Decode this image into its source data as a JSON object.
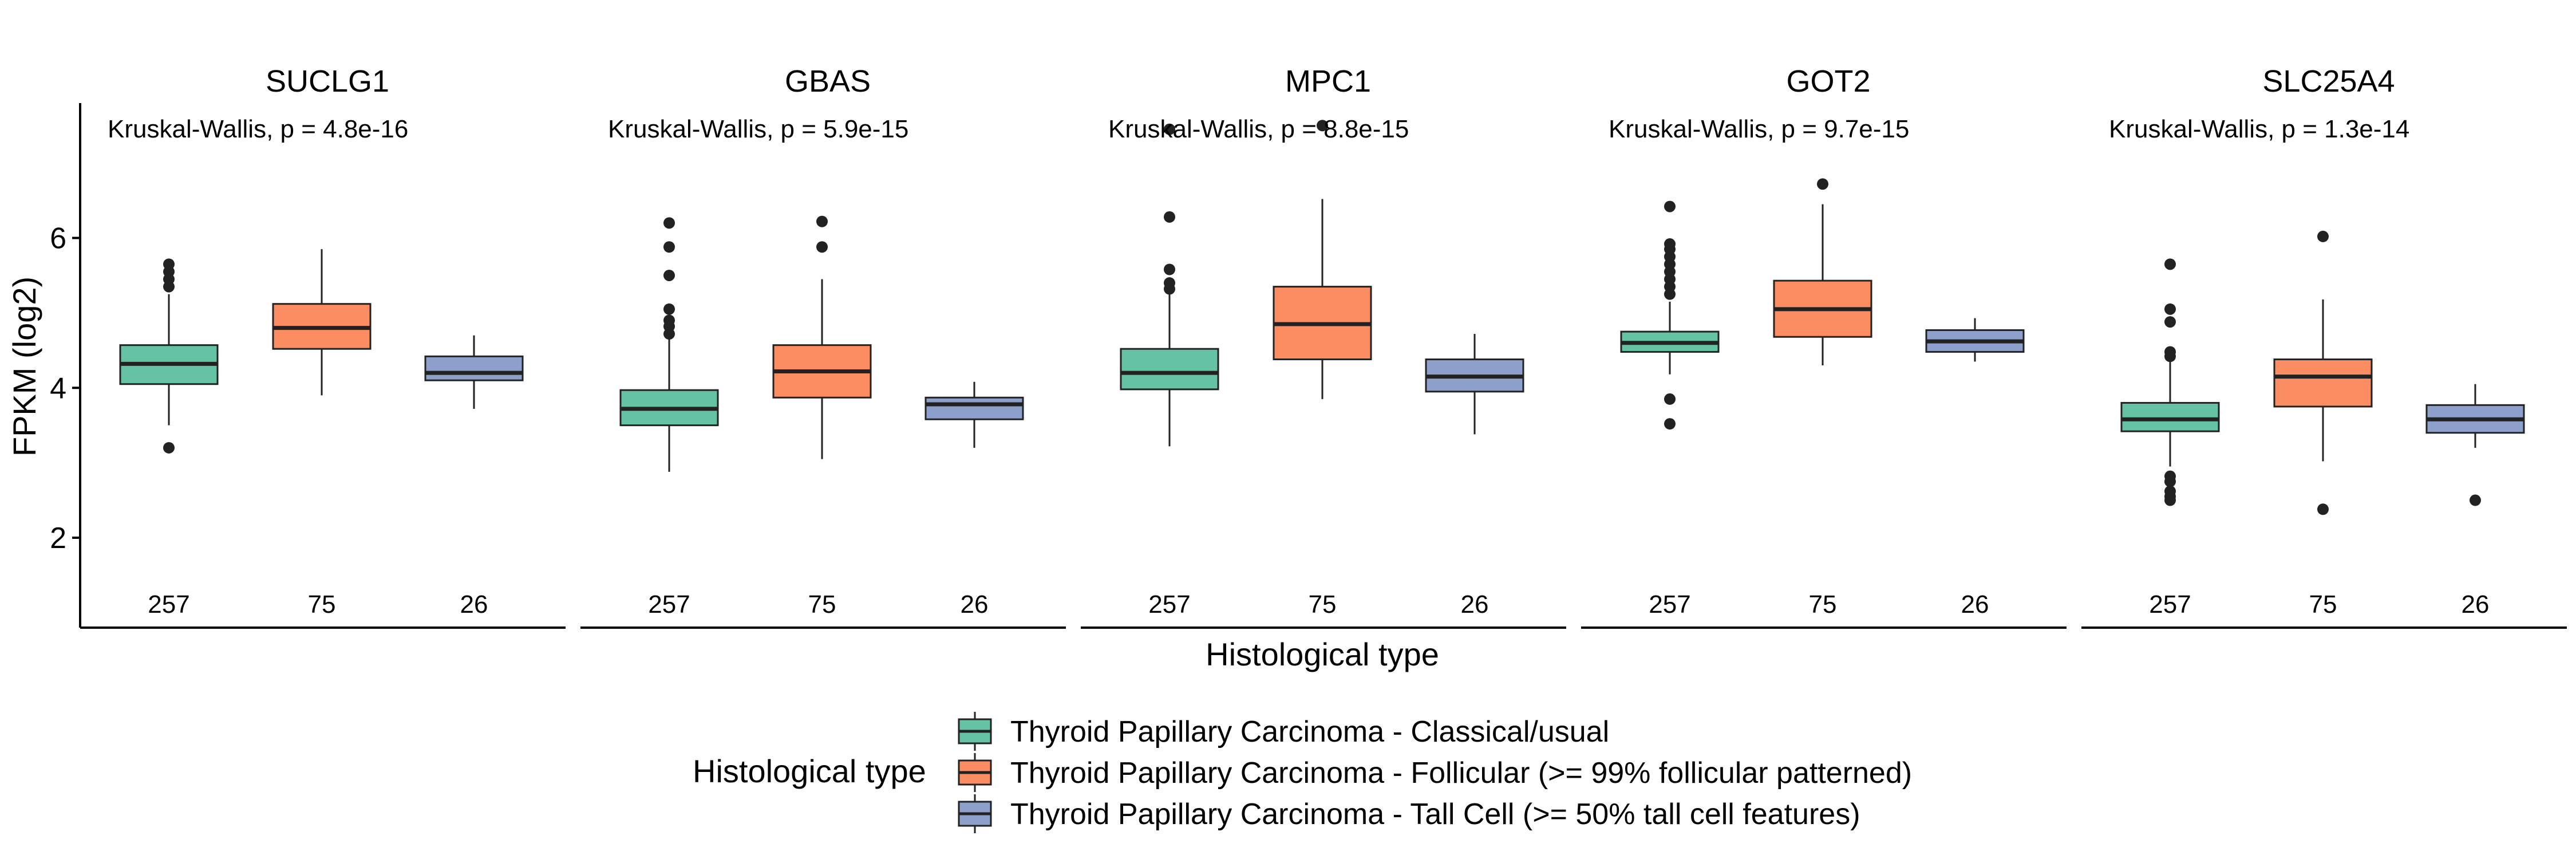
{
  "chart_data": {
    "type": "boxplot",
    "ylabel": "FPKM (log2)",
    "xlabel": "Histological type",
    "ylim": [
      0.8,
      7.8
    ],
    "yticks": [
      2,
      4,
      6
    ],
    "grid": false,
    "legend": {
      "title": "Histological type",
      "position": "bottom",
      "items": [
        {
          "label": "Thyroid Papillary Carcinoma - Classical/usual",
          "color": "#66C2A5"
        },
        {
          "label": "Thyroid Papillary Carcinoma - Follicular (>= 99% follicular patterned)",
          "color": "#FC8D62"
        },
        {
          "label": "Thyroid Papillary Carcinoma - Tall Cell (>= 50% tall cell features)",
          "color": "#8DA0CB"
        }
      ]
    },
    "panels": [
      {
        "title": "SUCLG1",
        "stat": "Kruskal-Wallis, p = 4.8e-16",
        "groups": [
          {
            "n": "257",
            "q1": 4.05,
            "median": 4.32,
            "q3": 4.57,
            "whisker_low": 3.5,
            "whisker_high": 5.25,
            "outliers": [
              5.35,
              5.45,
              5.55,
              5.65,
              3.2
            ]
          },
          {
            "n": "75",
            "q1": 4.52,
            "median": 4.8,
            "q3": 5.12,
            "whisker_low": 3.9,
            "whisker_high": 5.85,
            "outliers": []
          },
          {
            "n": "26",
            "q1": 4.1,
            "median": 4.2,
            "q3": 4.42,
            "whisker_low": 3.72,
            "whisker_high": 4.7,
            "outliers": []
          }
        ]
      },
      {
        "title": "GBAS",
        "stat": "Kruskal-Wallis, p = 5.9e-15",
        "groups": [
          {
            "n": "257",
            "q1": 3.5,
            "median": 3.72,
            "q3": 3.97,
            "whisker_low": 2.88,
            "whisker_high": 4.65,
            "outliers": [
              4.72,
              4.82,
              4.9,
              5.05,
              5.5,
              5.88,
              6.2
            ]
          },
          {
            "n": "75",
            "q1": 3.87,
            "median": 4.22,
            "q3": 4.57,
            "whisker_low": 3.05,
            "whisker_high": 5.45,
            "outliers": [
              5.88,
              6.22
            ]
          },
          {
            "n": "26",
            "q1": 3.58,
            "median": 3.78,
            "q3": 3.87,
            "whisker_low": 3.2,
            "whisker_high": 4.08,
            "outliers": []
          }
        ]
      },
      {
        "title": "MPC1",
        "stat": "Kruskal-Wallis, p = 8.8e-15",
        "groups": [
          {
            "n": "257",
            "q1": 3.98,
            "median": 4.2,
            "q3": 4.52,
            "whisker_low": 3.22,
            "whisker_high": 5.25,
            "outliers": [
              5.32,
              5.4,
              5.58,
              6.28,
              7.45
            ]
          },
          {
            "n": "75",
            "q1": 4.38,
            "median": 4.85,
            "q3": 5.35,
            "whisker_low": 3.85,
            "whisker_high": 6.52,
            "outliers": [
              7.5
            ]
          },
          {
            "n": "26",
            "q1": 3.95,
            "median": 4.15,
            "q3": 4.38,
            "whisker_low": 3.38,
            "whisker_high": 4.72,
            "outliers": []
          }
        ]
      },
      {
        "title": "GOT2",
        "stat": "Kruskal-Wallis, p = 9.7e-15",
        "groups": [
          {
            "n": "257",
            "q1": 4.48,
            "median": 4.6,
            "q3": 4.75,
            "whisker_low": 4.18,
            "whisker_high": 5.15,
            "outliers": [
              5.25,
              5.35,
              5.45,
              5.55,
              5.65,
              5.75,
              5.85,
              5.92,
              6.42,
              3.85,
              3.52
            ]
          },
          {
            "n": "75",
            "q1": 4.68,
            "median": 5.05,
            "q3": 5.43,
            "whisker_low": 4.3,
            "whisker_high": 6.45,
            "outliers": [
              6.72
            ]
          },
          {
            "n": "26",
            "q1": 4.48,
            "median": 4.62,
            "q3": 4.77,
            "whisker_low": 4.35,
            "whisker_high": 4.93,
            "outliers": []
          }
        ]
      },
      {
        "title": "SLC25A4",
        "stat": "Kruskal-Wallis, p = 1.3e-14",
        "groups": [
          {
            "n": "257",
            "q1": 3.42,
            "median": 3.58,
            "q3": 3.8,
            "whisker_low": 2.95,
            "whisker_high": 4.38,
            "outliers": [
              4.42,
              4.48,
              4.88,
              5.05,
              5.65,
              2.82,
              2.75,
              2.62,
              2.55,
              2.5
            ]
          },
          {
            "n": "75",
            "q1": 3.75,
            "median": 4.15,
            "q3": 4.38,
            "whisker_low": 3.02,
            "whisker_high": 5.18,
            "outliers": [
              6.02,
              2.38
            ]
          },
          {
            "n": "26",
            "q1": 3.4,
            "median": 3.58,
            "q3": 3.77,
            "whisker_low": 3.2,
            "whisker_high": 4.05,
            "outliers": [
              2.5
            ]
          }
        ]
      }
    ]
  }
}
